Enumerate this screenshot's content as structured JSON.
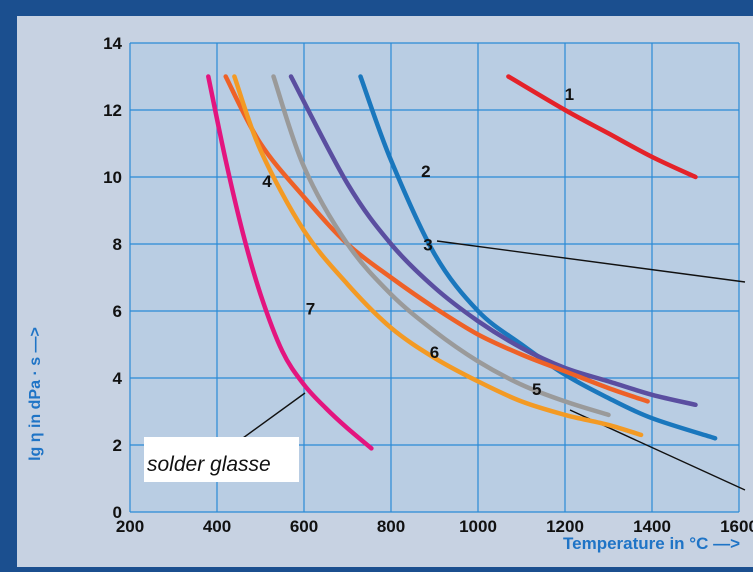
{
  "chart_data": {
    "type": "line",
    "xlabel": "Temperature in °C —>",
    "ylabel": "lg η in dPa · s —>",
    "xlim": [
      200,
      1600
    ],
    "ylim": [
      0,
      14
    ],
    "x_ticks": [
      "200",
      "400",
      "600",
      "800",
      "1000",
      "1200",
      "1400",
      "1600"
    ],
    "y_ticks": [
      "0",
      "2",
      "4",
      "6",
      "8",
      "10",
      "12",
      "14"
    ],
    "grid": true,
    "colors": {
      "frame": "#1b4f8f",
      "panel": "#c7d2e2",
      "plot_bg": "#b9cde3",
      "grid": "#2a8ad6",
      "tick_text": "#111111",
      "axis_label": "#1f74c6"
    },
    "series": [
      {
        "name": "1",
        "color": "#e42229",
        "x": [
          1070,
          1200,
          1300,
          1400,
          1500
        ],
        "y": [
          13.0,
          12.0,
          11.3,
          10.6,
          10.0
        ]
      },
      {
        "name": "2",
        "color": "#1a77bd",
        "x": [
          730,
          800,
          900,
          1000,
          1100,
          1200,
          1300,
          1400,
          1545
        ],
        "y": [
          13.0,
          10.5,
          7.7,
          6.0,
          5.0,
          4.1,
          3.4,
          2.8,
          2.2
        ]
      },
      {
        "name": "3",
        "color": "#5a4ea0",
        "x": [
          570,
          700,
          800,
          900,
          1000,
          1100,
          1200,
          1300,
          1400,
          1500
        ],
        "y": [
          13.0,
          9.8,
          8.0,
          6.7,
          5.7,
          4.9,
          4.3,
          3.9,
          3.5,
          3.2
        ]
      },
      {
        "name": "4",
        "color": "#ee6127",
        "x": [
          420,
          500,
          600,
          700,
          800,
          900,
          1000,
          1100,
          1200,
          1300,
          1390
        ],
        "y": [
          13.0,
          11.0,
          9.4,
          8.0,
          7.0,
          6.1,
          5.3,
          4.7,
          4.2,
          3.7,
          3.3
        ]
      },
      {
        "name": "5",
        "color": "#9a9a9a",
        "x": [
          530,
          600,
          700,
          800,
          900,
          1000,
          1100,
          1200,
          1300
        ],
        "y": [
          13.0,
          10.3,
          8.0,
          6.5,
          5.4,
          4.5,
          3.8,
          3.3,
          2.9
        ]
      },
      {
        "name": "6",
        "color": "#f39a24",
        "x": [
          440,
          500,
          600,
          700,
          800,
          900,
          1000,
          1100,
          1200,
          1300,
          1375
        ],
        "y": [
          13.0,
          10.8,
          8.4,
          6.8,
          5.5,
          4.6,
          3.9,
          3.3,
          2.9,
          2.6,
          2.3
        ]
      },
      {
        "name": "7",
        "color": "#e3157f",
        "x": [
          380,
          420,
          460,
          500,
          550,
          600,
          650,
          700,
          755
        ],
        "y": [
          13.0,
          10.5,
          8.3,
          6.5,
          4.8,
          3.8,
          3.1,
          2.5,
          1.9
        ]
      }
    ],
    "curve_labels": [
      {
        "text": "1",
        "x": 1210,
        "y": 12.3
      },
      {
        "text": "2",
        "x": 880,
        "y": 10.0
      },
      {
        "text": "3",
        "x": 885,
        "y": 7.8
      },
      {
        "text": "4",
        "x": 515,
        "y": 9.7
      },
      {
        "text": "5",
        "x": 1135,
        "y": 3.5
      },
      {
        "text": "6",
        "x": 900,
        "y": 4.6
      },
      {
        "text": "7",
        "x": 615,
        "y": 5.9
      }
    ],
    "callout": {
      "text": "solder glasse"
    }
  }
}
